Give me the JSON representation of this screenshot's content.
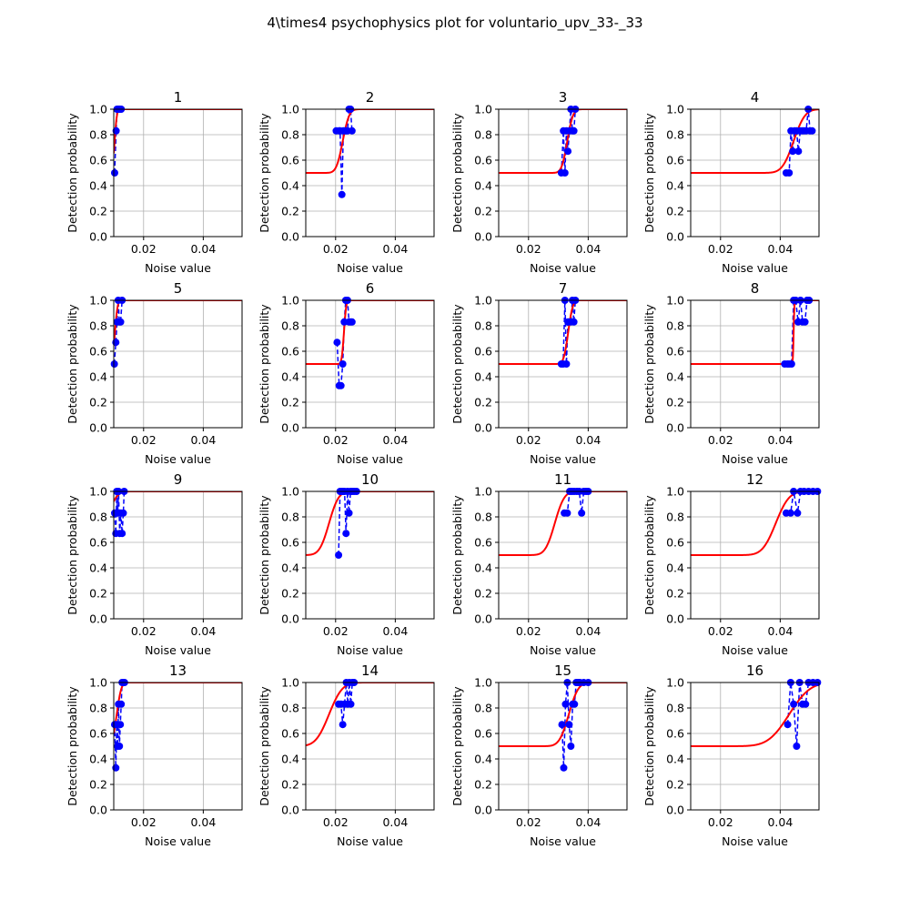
{
  "figure": {
    "suptitle": "4\\times4 psychophysics plot for voluntario_upv_33-_33"
  },
  "axes_style": {
    "xlabel": "Noise value",
    "ylabel": "Detection probability",
    "xlim": [
      0.01,
      0.053
    ],
    "ylim": [
      0.0,
      1.0
    ],
    "xticks": [
      0.02,
      0.04
    ],
    "xtick_labels": [
      "0.02",
      "0.04"
    ],
    "yticks": [
      0.0,
      0.2,
      0.4,
      0.6,
      0.8,
      1.0
    ],
    "ytick_labels": [
      "0.0",
      "0.2",
      "0.4",
      "0.6",
      "0.8",
      "1.0"
    ],
    "grid": true,
    "data_color": "#0000ff",
    "fit_color": "#ff0000"
  },
  "chart_data": [
    {
      "type": "line",
      "title": "1",
      "fit": {
        "mu": 0.0103,
        "sigma": 0.0006
      },
      "x": [
        0.0103,
        0.0108,
        0.0111,
        0.0114,
        0.0118,
        0.0121,
        0.0125
      ],
      "y": [
        0.5,
        0.83,
        1.0,
        1.0,
        1.0,
        1.0,
        1.0
      ]
    },
    {
      "type": "line",
      "title": "2",
      "fit": {
        "mu": 0.0224,
        "sigma": 0.0017
      },
      "x": [
        0.0202,
        0.0212,
        0.0215,
        0.0221,
        0.0226,
        0.0231,
        0.0235,
        0.024,
        0.0245,
        0.025,
        0.0255
      ],
      "y": [
        0.83,
        0.83,
        0.83,
        0.33,
        0.83,
        0.83,
        0.83,
        0.83,
        1.0,
        1.0,
        0.83
      ]
    },
    {
      "type": "line",
      "title": "3",
      "fit": {
        "mu": 0.033,
        "sigma": 0.0015
      },
      "x": [
        0.031,
        0.0317,
        0.0322,
        0.0327,
        0.0332,
        0.0337,
        0.0342,
        0.0347,
        0.0352,
        0.0357
      ],
      "y": [
        0.5,
        0.83,
        0.5,
        0.83,
        0.67,
        0.83,
        1.0,
        0.83,
        0.83,
        1.0
      ]
    },
    {
      "type": "line",
      "title": "4",
      "fit": {
        "mu": 0.0445,
        "sigma": 0.003
      },
      "x": [
        0.042,
        0.043,
        0.0436,
        0.0442,
        0.0448,
        0.0455,
        0.0461,
        0.0467,
        0.0474,
        0.048,
        0.0487,
        0.0494,
        0.05,
        0.0507
      ],
      "y": [
        0.5,
        0.5,
        0.83,
        0.67,
        0.83,
        0.83,
        0.67,
        0.83,
        0.83,
        0.83,
        0.83,
        1.0,
        0.83,
        0.83
      ]
    },
    {
      "type": "line",
      "title": "5",
      "fit": {
        "mu": 0.0104,
        "sigma": 0.0007
      },
      "x": [
        0.0102,
        0.0107,
        0.0111,
        0.0115,
        0.0119,
        0.0123,
        0.0128
      ],
      "y": [
        0.5,
        0.67,
        0.83,
        1.0,
        0.83,
        0.83,
        1.0
      ]
    },
    {
      "type": "line",
      "title": "6",
      "fit": {
        "mu": 0.0228,
        "sigma": 0.0006
      },
      "x": [
        0.0205,
        0.0212,
        0.0218,
        0.0224,
        0.0229,
        0.0234,
        0.024,
        0.0245,
        0.025,
        0.0255
      ],
      "y": [
        0.67,
        0.33,
        0.33,
        0.5,
        0.83,
        1.0,
        1.0,
        0.83,
        0.83,
        0.83
      ]
    },
    {
      "type": "line",
      "title": "7",
      "fit": {
        "mu": 0.0333,
        "sigma": 0.0012
      },
      "x": [
        0.031,
        0.0316,
        0.0322,
        0.0327,
        0.0332,
        0.0337,
        0.0342,
        0.0347,
        0.0352,
        0.0357
      ],
      "y": [
        0.5,
        0.5,
        1.0,
        0.5,
        0.83,
        0.83,
        0.83,
        1.0,
        0.83,
        1.0
      ]
    },
    {
      "type": "line",
      "title": "8",
      "fit": {
        "mu": 0.0445,
        "sigma": 0.0002
      },
      "x": [
        0.0415,
        0.0424,
        0.043,
        0.0438,
        0.0445,
        0.0452,
        0.046,
        0.0468,
        0.0475,
        0.0483,
        0.049,
        0.0497
      ],
      "y": [
        0.5,
        0.5,
        0.5,
        0.5,
        1.0,
        1.0,
        0.83,
        1.0,
        0.83,
        0.83,
        1.0,
        1.0
      ]
    },
    {
      "type": "line",
      "title": "9",
      "fit": {
        "mu": 0.0075,
        "sigma": 0.0025
      },
      "x": [
        0.0103,
        0.0107,
        0.011,
        0.0113,
        0.0116,
        0.012,
        0.0124,
        0.0128,
        0.0132,
        0.0135
      ],
      "y": [
        0.83,
        0.67,
        1.0,
        0.83,
        1.0,
        0.67,
        0.83,
        0.67,
        0.83,
        1.0
      ]
    },
    {
      "type": "line",
      "title": "10",
      "fit": {
        "mu": 0.0178,
        "sigma": 0.0025
      },
      "x": [
        0.021,
        0.0215,
        0.022,
        0.0225,
        0.023,
        0.0235,
        0.024,
        0.0245,
        0.025,
        0.0255,
        0.0262,
        0.027
      ],
      "y": [
        0.5,
        1.0,
        1.0,
        1.0,
        1.0,
        0.67,
        1.0,
        0.83,
        1.0,
        1.0,
        1.0,
        1.0
      ]
    },
    {
      "type": "line",
      "title": "11",
      "fit": {
        "mu": 0.0288,
        "sigma": 0.0025
      },
      "x": [
        0.032,
        0.033,
        0.0338,
        0.0345,
        0.0353,
        0.0362,
        0.037,
        0.0378,
        0.0385,
        0.0393,
        0.04
      ],
      "y": [
        0.83,
        0.83,
        1.0,
        1.0,
        1.0,
        1.0,
        1.0,
        0.83,
        1.0,
        1.0,
        1.0
      ]
    },
    {
      "type": "line",
      "title": "12",
      "fit": {
        "mu": 0.0385,
        "sigma": 0.0035
      },
      "x": [
        0.042,
        0.0435,
        0.0445,
        0.0458,
        0.0468,
        0.048,
        0.0495,
        0.051,
        0.0525
      ],
      "y": [
        0.83,
        0.83,
        1.0,
        0.83,
        1.0,
        1.0,
        1.0,
        1.0,
        1.0
      ]
    },
    {
      "type": "line",
      "title": "13",
      "fit": {
        "mu": 0.011,
        "sigma": 0.0012
      },
      "x": [
        0.0103,
        0.0107,
        0.011,
        0.0113,
        0.0116,
        0.0119,
        0.0122,
        0.0125,
        0.0128,
        0.0132,
        0.0136
      ],
      "y": [
        0.67,
        0.33,
        0.67,
        0.5,
        0.83,
        0.5,
        0.67,
        0.83,
        1.0,
        1.0,
        1.0
      ]
    },
    {
      "type": "line",
      "title": "14",
      "fit": {
        "mu": 0.0178,
        "sigma": 0.0035
      },
      "x": [
        0.021,
        0.0218,
        0.0224,
        0.023,
        0.0236,
        0.0241,
        0.0246,
        0.0251,
        0.0256,
        0.0262
      ],
      "y": [
        0.83,
        0.83,
        0.67,
        0.83,
        1.0,
        0.83,
        1.0,
        0.83,
        1.0,
        1.0
      ]
    },
    {
      "type": "line",
      "title": "15",
      "fit": {
        "mu": 0.0335,
        "sigma": 0.0025
      },
      "x": [
        0.0312,
        0.0318,
        0.0324,
        0.033,
        0.0336,
        0.0342,
        0.0348,
        0.0354,
        0.036,
        0.0366,
        0.0372,
        0.0385,
        0.04
      ],
      "y": [
        0.67,
        0.33,
        0.83,
        1.0,
        0.67,
        0.5,
        0.83,
        0.83,
        1.0,
        1.0,
        1.0,
        1.0,
        1.0
      ]
    },
    {
      "type": "line",
      "title": "16",
      "fit": {
        "mu": 0.043,
        "sigma": 0.0055
      },
      "x": [
        0.0425,
        0.0435,
        0.0445,
        0.0455,
        0.0465,
        0.0475,
        0.0485,
        0.0495,
        0.051,
        0.0525
      ],
      "y": [
        0.67,
        1.0,
        0.83,
        0.5,
        1.0,
        0.83,
        0.83,
        1.0,
        1.0,
        1.0
      ]
    }
  ]
}
